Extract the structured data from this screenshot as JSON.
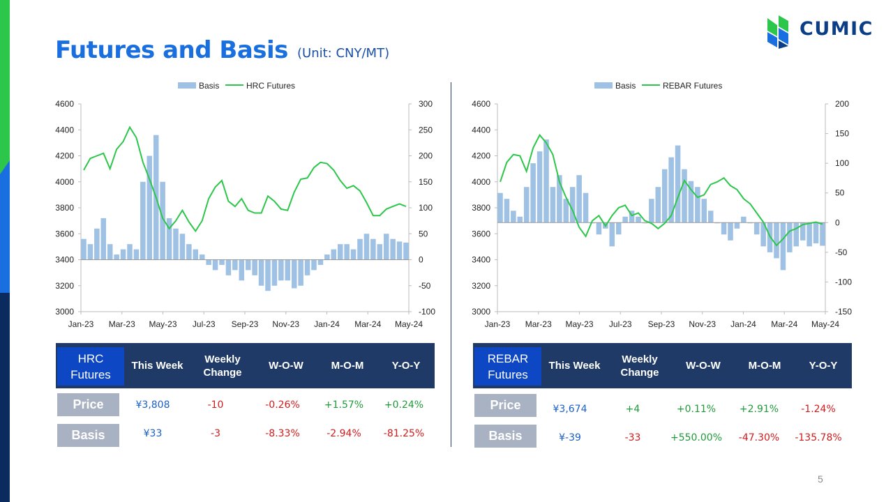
{
  "page": {
    "title": "Futures and Basis",
    "unit": "(Unit: CNY/MT)",
    "page_number": "5"
  },
  "brand": {
    "name": "CUMIC",
    "colors": {
      "primary": "#1a6fe0",
      "navy": "#1f3a66",
      "green": "#2cc64a",
      "bar": "#9fc1e4"
    }
  },
  "chart_data": [
    {
      "type": "bar+line",
      "title": "",
      "legend": [
        "Basis",
        "HRC Futures"
      ],
      "legend_position": "top-center",
      "x_ticks": [
        "Jan-23",
        "Mar-23",
        "May-23",
        "Jul-23",
        "Sep-23",
        "Nov-23",
        "Jan-24",
        "Mar-24",
        "May-24"
      ],
      "left_axis": {
        "range": [
          3000,
          4600
        ],
        "ticks": [
          "4600",
          "4400",
          "4200",
          "4000",
          "3800",
          "3600",
          "3400",
          "3200",
          "3000"
        ]
      },
      "right_axis": {
        "range": [
          -100,
          300
        ],
        "ticks": [
          "300",
          "250",
          "200",
          "150",
          "100",
          "50",
          "0",
          "-50",
          "-100"
        ]
      },
      "series": [
        {
          "name": "HRC Futures",
          "axis": "left",
          "values": [
            4090,
            4180,
            4200,
            4220,
            4100,
            4250,
            4310,
            4420,
            4340,
            4150,
            4020,
            3880,
            3720,
            3640,
            3700,
            3780,
            3690,
            3620,
            3700,
            3870,
            3960,
            4010,
            3850,
            3810,
            3870,
            3780,
            3760,
            3760,
            3890,
            3850,
            3790,
            3780,
            3920,
            4020,
            4030,
            4110,
            4150,
            4140,
            4090,
            4010,
            3950,
            3970,
            3930,
            3840,
            3740,
            3740,
            3790,
            3810,
            3830,
            3810
          ]
        },
        {
          "name": "Basis",
          "axis": "right",
          "values": [
            40,
            30,
            60,
            80,
            30,
            10,
            20,
            30,
            20,
            150,
            200,
            240,
            150,
            80,
            60,
            50,
            30,
            20,
            10,
            -10,
            -20,
            -10,
            -30,
            -20,
            -40,
            -20,
            -30,
            -50,
            -60,
            -50,
            -40,
            -40,
            -55,
            -50,
            -30,
            -20,
            -10,
            10,
            20,
            30,
            30,
            20,
            40,
            50,
            40,
            30,
            50,
            40,
            35,
            33
          ]
        }
      ]
    },
    {
      "type": "bar+line",
      "title": "",
      "legend": [
        "Basis",
        "REBAR Futures"
      ],
      "legend_position": "top-center",
      "x_ticks": [
        "Jan-23",
        "Mar-23",
        "May-23",
        "Jul-23",
        "Sep-23",
        "Nov-23",
        "Jan-24",
        "Mar-24",
        "May-24"
      ],
      "left_axis": {
        "range": [
          3000,
          4600
        ],
        "ticks": [
          "4600",
          "4400",
          "4200",
          "4000",
          "3800",
          "3600",
          "3400",
          "3200",
          "3000"
        ]
      },
      "right_axis": {
        "range": [
          -150,
          200
        ],
        "ticks": [
          "200",
          "150",
          "100",
          "50",
          "0",
          "-50",
          "-100",
          "-150"
        ]
      },
      "series": [
        {
          "name": "REBAR Futures",
          "axis": "left",
          "values": [
            4000,
            4150,
            4210,
            4200,
            4080,
            4260,
            4360,
            4300,
            4210,
            4000,
            3880,
            3780,
            3650,
            3580,
            3700,
            3740,
            3660,
            3740,
            3800,
            3820,
            3740,
            3760,
            3700,
            3680,
            3640,
            3680,
            3740,
            3880,
            4010,
            3940,
            3880,
            3900,
            3980,
            4000,
            4030,
            3970,
            3940,
            3870,
            3830,
            3760,
            3690,
            3580,
            3510,
            3560,
            3620,
            3640,
            3670,
            3680,
            3690,
            3674
          ]
        },
        {
          "name": "Basis",
          "axis": "right",
          "values": [
            50,
            40,
            20,
            10,
            60,
            100,
            120,
            140,
            60,
            80,
            40,
            60,
            80,
            50,
            0,
            -20,
            -10,
            -40,
            -20,
            10,
            20,
            10,
            0,
            40,
            60,
            90,
            110,
            130,
            90,
            70,
            60,
            40,
            20,
            0,
            -20,
            -30,
            -10,
            10,
            0,
            -20,
            -40,
            -50,
            -60,
            -80,
            -50,
            -40,
            -30,
            -40,
            -35,
            -39
          ]
        }
      ]
    }
  ],
  "tables": {
    "hrc": {
      "header": [
        "HRC\nFutures",
        "This Week",
        "Weekly\nChange",
        "W-O-W",
        "M-O-M",
        "Y-O-Y"
      ],
      "rows": [
        {
          "label": "Price",
          "this_week": "¥3,808",
          "weekly_change": "-10",
          "wow": "-0.26%",
          "mom": "+1.57%",
          "yoy": "+0.24%"
        },
        {
          "label": "Basis",
          "this_week": "¥33",
          "weekly_change": "-3",
          "wow": "-8.33%",
          "mom": "-2.94%",
          "yoy": "-81.25%"
        }
      ]
    },
    "rebar": {
      "header": [
        "REBAR\nFutures",
        "This Week",
        "Weekly\nChange",
        "W-O-W",
        "M-O-M",
        "Y-O-Y"
      ],
      "rows": [
        {
          "label": "Price",
          "this_week": "¥3,674",
          "weekly_change": "+4",
          "wow": "+0.11%",
          "mom": "+2.91%",
          "yoy": "-1.24%"
        },
        {
          "label": "Basis",
          "this_week": "¥-39",
          "weekly_change": "-33",
          "wow": "+550.00%",
          "mom": "-47.30%",
          "yoy": "-135.78%"
        }
      ]
    }
  }
}
